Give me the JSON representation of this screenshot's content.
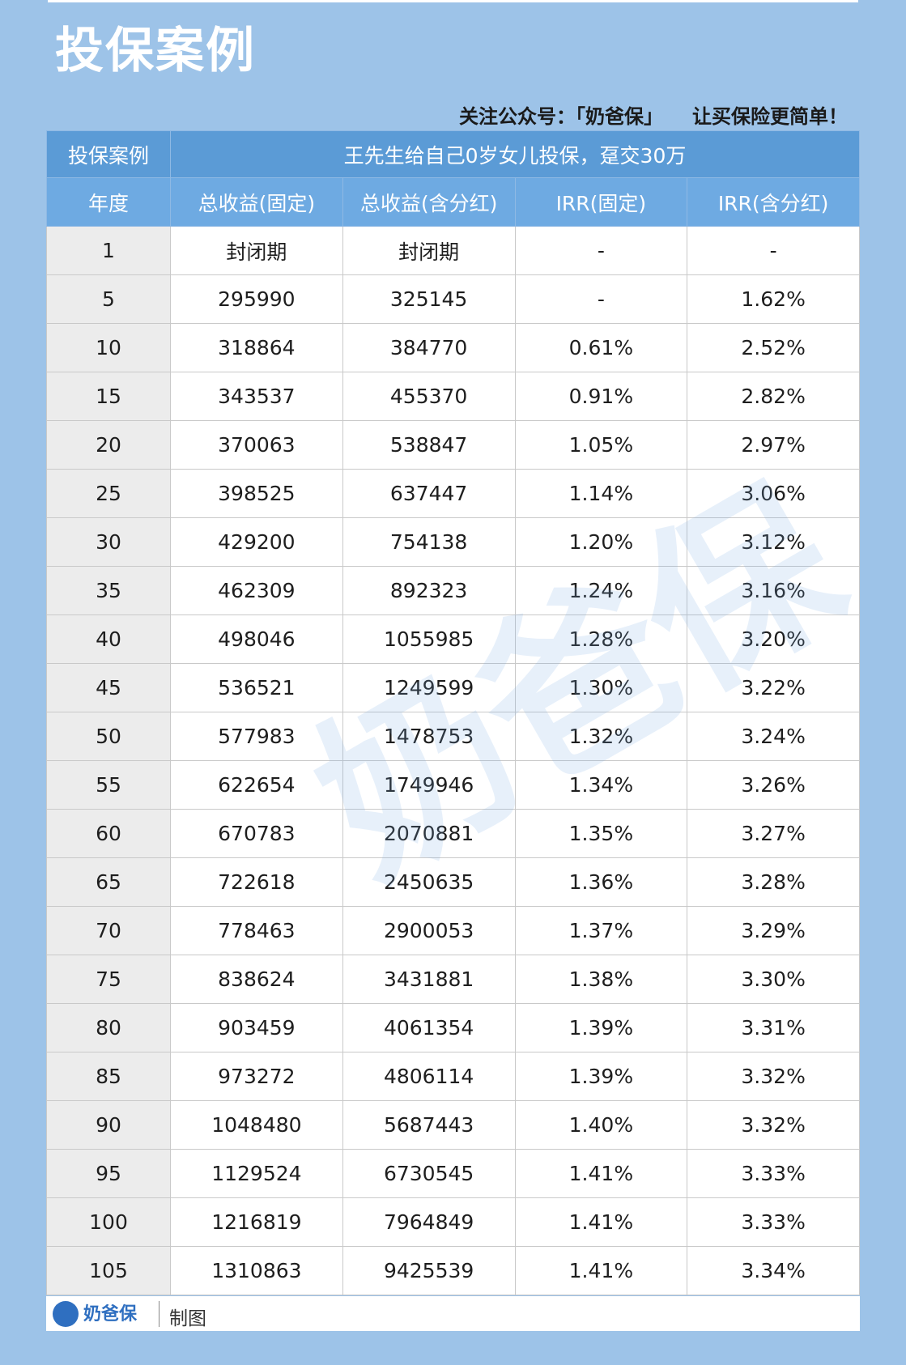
{
  "header": {
    "title": "投保案例",
    "subtitle": "关注公众号：「奶爸保」　　让买保险更简单！"
  },
  "table": {
    "caption_label": "投保案例",
    "caption": "王先生给自己0岁女儿投保，趸交30万",
    "columns": [
      "年度",
      "总收益(固定)",
      "总收益(含分红)",
      "IRR(固定)",
      "IRR(含分红)"
    ],
    "rows": [
      [
        "1",
        "封闭期",
        "封闭期",
        "-",
        "-"
      ],
      [
        "5",
        "295990",
        "325145",
        "-",
        "1.62%"
      ],
      [
        "10",
        "318864",
        "384770",
        "0.61%",
        "2.52%"
      ],
      [
        "15",
        "343537",
        "455370",
        "0.91%",
        "2.82%"
      ],
      [
        "20",
        "370063",
        "538847",
        "1.05%",
        "2.97%"
      ],
      [
        "25",
        "398525",
        "637447",
        "1.14%",
        "3.06%"
      ],
      [
        "30",
        "429200",
        "754138",
        "1.20%",
        "3.12%"
      ],
      [
        "35",
        "462309",
        "892323",
        "1.24%",
        "3.16%"
      ],
      [
        "40",
        "498046",
        "1055985",
        "1.28%",
        "3.20%"
      ],
      [
        "45",
        "536521",
        "1249599",
        "1.30%",
        "3.22%"
      ],
      [
        "50",
        "577983",
        "1478753",
        "1.32%",
        "3.24%"
      ],
      [
        "55",
        "622654",
        "1749946",
        "1.34%",
        "3.26%"
      ],
      [
        "60",
        "670783",
        "2070881",
        "1.35%",
        "3.27%"
      ],
      [
        "65",
        "722618",
        "2450635",
        "1.36%",
        "3.28%"
      ],
      [
        "70",
        "778463",
        "2900053",
        "1.37%",
        "3.29%"
      ],
      [
        "75",
        "838624",
        "3431881",
        "1.38%",
        "3.30%"
      ],
      [
        "80",
        "903459",
        "4061354",
        "1.39%",
        "3.31%"
      ],
      [
        "85",
        "973272",
        "4806114",
        "1.39%",
        "3.32%"
      ],
      [
        "90",
        "1048480",
        "5687443",
        "1.40%",
        "3.32%"
      ],
      [
        "95",
        "1129524",
        "6730545",
        "1.41%",
        "3.33%"
      ],
      [
        "100",
        "1216819",
        "7964849",
        "1.41%",
        "3.33%"
      ],
      [
        "105",
        "1310863",
        "9425539",
        "1.41%",
        "3.34%"
      ]
    ]
  },
  "footer": {
    "brand": "奶爸保",
    "note": "制图"
  },
  "watermark": "奶爸保"
}
